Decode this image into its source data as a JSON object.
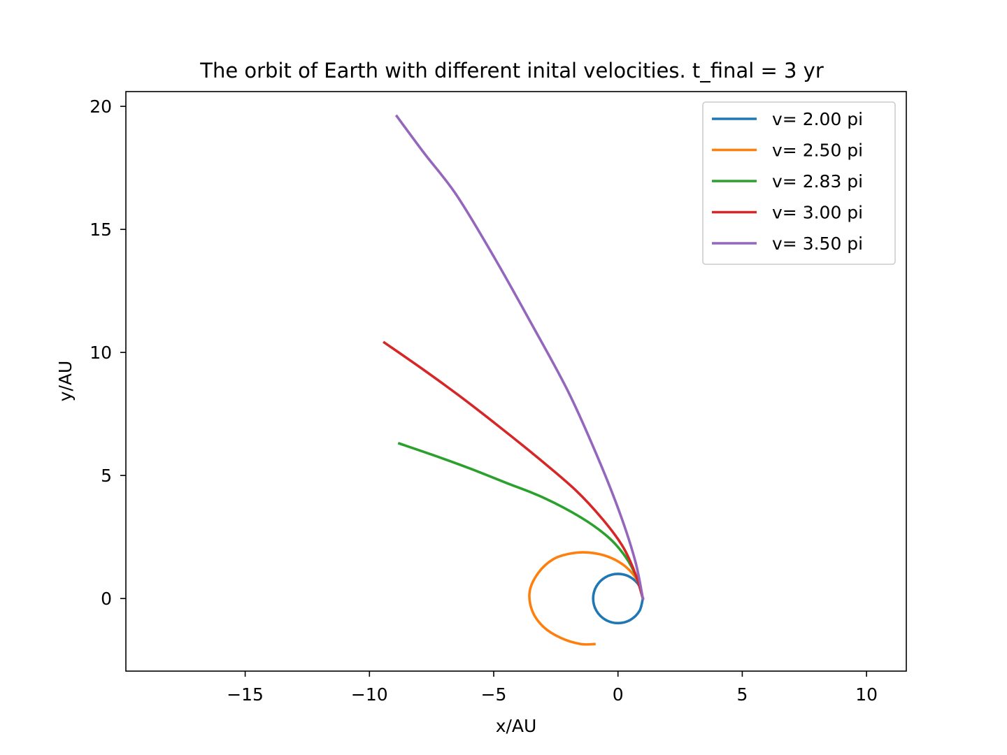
{
  "chart_data": {
    "type": "line",
    "title": "The orbit of Earth with different inital velocities. t_final = 3 yr",
    "xlabel": "x/AU",
    "ylabel": "y/AU",
    "xlim": [
      -19.8,
      11.6
    ],
    "ylim": [
      -2.95,
      20.6
    ],
    "xticks": [
      -15,
      -10,
      -5,
      0,
      5,
      10
    ],
    "xtick_labels": [
      "−15",
      "−10",
      "−5",
      "0",
      "5",
      "10"
    ],
    "yticks": [
      0,
      5,
      10,
      15,
      20
    ],
    "ytick_labels": [
      "0",
      "5",
      "10",
      "15",
      "20"
    ],
    "grid": false,
    "legend_position": "top-right",
    "series": [
      {
        "name": "v= 2.00 pi",
        "color": "#1f77b4",
        "x": [
          1.0,
          0.866,
          0.5,
          0.0,
          -0.5,
          -0.866,
          -1.0,
          -0.866,
          -0.5,
          0.0,
          0.5,
          0.866,
          1.0
        ],
        "y": [
          0.0,
          0.5,
          0.866,
          1.0,
          0.866,
          0.5,
          0.0,
          -0.5,
          -0.866,
          -1.0,
          -0.866,
          -0.5,
          0.0
        ]
      },
      {
        "name": "v= 2.50 pi",
        "color": "#ff7f0e",
        "x": [
          1.0,
          0.8,
          0.3,
          -0.4,
          -1.2,
          -1.9,
          -2.6,
          -3.2,
          -3.55,
          -3.45,
          -3.0,
          -2.3,
          -1.5,
          -0.95
        ],
        "y": [
          0.0,
          0.7,
          1.3,
          1.7,
          1.87,
          1.83,
          1.6,
          1.05,
          0.3,
          -0.5,
          -1.15,
          -1.6,
          -1.85,
          -1.85
        ]
      },
      {
        "name": "v= 2.83 pi",
        "color": "#2ca02c",
        "x": [
          1.0,
          0.75,
          0.3,
          -0.4,
          -1.5,
          -3.0,
          -4.5,
          -6.0,
          -7.5,
          -8.8
        ],
        "y": [
          0.0,
          0.85,
          1.7,
          2.5,
          3.3,
          4.1,
          4.7,
          5.3,
          5.85,
          6.3
        ]
      },
      {
        "name": "v= 3.00 pi",
        "color": "#d62728",
        "x": [
          1.0,
          0.7,
          0.2,
          -0.6,
          -1.7,
          -3.2,
          -4.8,
          -6.4,
          -7.9,
          -9.4
        ],
        "y": [
          0.0,
          1.0,
          2.1,
          3.2,
          4.4,
          5.7,
          7.0,
          8.25,
          9.35,
          10.4
        ]
      },
      {
        "name": "v= 3.50 pi",
        "color": "#9467bd",
        "x": [
          1.0,
          0.7,
          0.1,
          -0.8,
          -2.0,
          -3.5,
          -5.0,
          -6.5,
          -7.8,
          -8.9
        ],
        "y": [
          0.0,
          1.5,
          3.4,
          5.7,
          8.4,
          11.2,
          13.9,
          16.4,
          18.1,
          19.6
        ]
      }
    ]
  }
}
